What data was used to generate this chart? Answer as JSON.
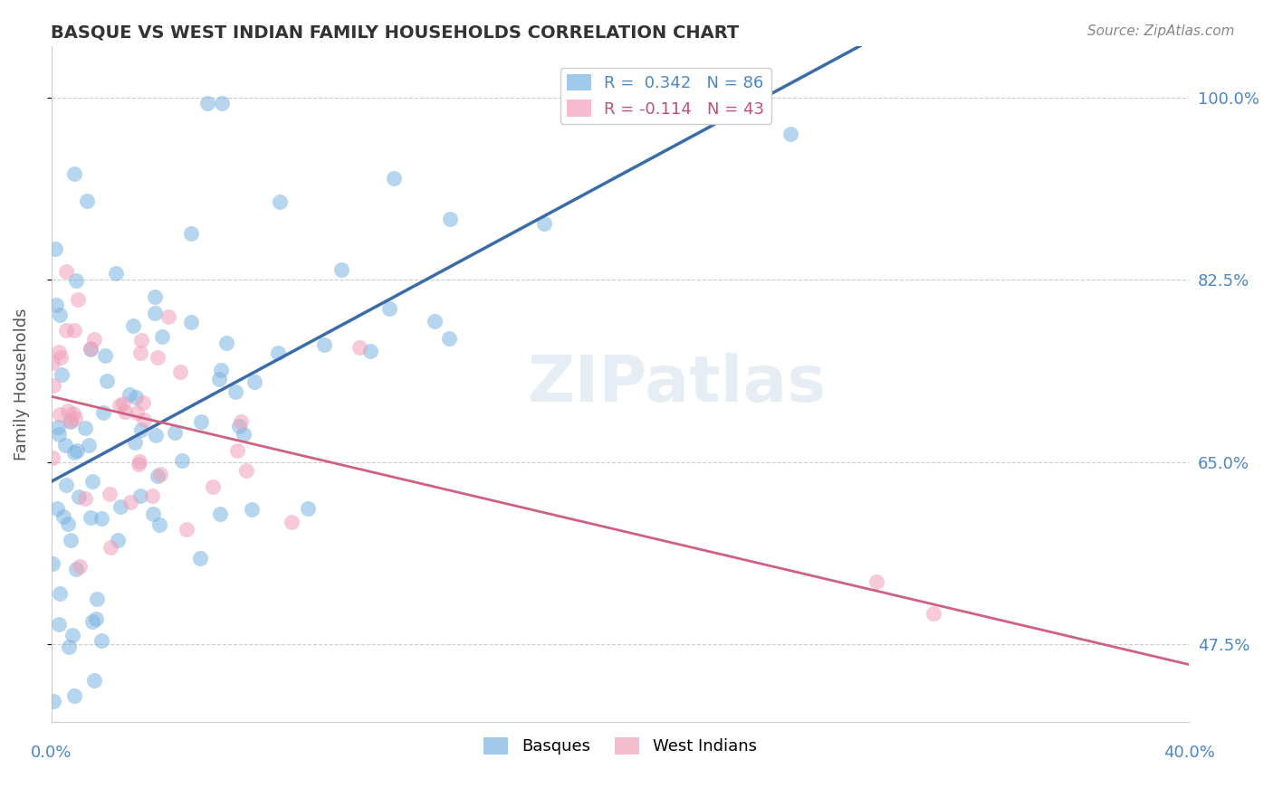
{
  "title": "BASQUE VS WEST INDIAN FAMILY HOUSEHOLDS CORRELATION CHART",
  "source": "Source: ZipAtlas.com",
  "ylabel": "Family Households",
  "yticks": [
    "47.5%",
    "65.0%",
    "82.5%",
    "100.0%"
  ],
  "ytick_values": [
    0.475,
    0.65,
    0.825,
    1.0
  ],
  "xlim": [
    0.0,
    0.4
  ],
  "ylim": [
    0.4,
    1.05
  ],
  "watermark": "ZIPatlas",
  "blue_color": "#7ab3e0",
  "pink_color": "#f0a0b8",
  "line_blue": "#3a6caa",
  "line_pink": "#d06080",
  "legend_r1": "R =  0.342   N = 86",
  "legend_r2": "R = -0.114   N = 43",
  "legend_color1": "#4a86c8",
  "legend_color2": "#c05070",
  "tick_color": "#4a86c8",
  "title_color": "#333333",
  "source_color": "#888888",
  "ylabel_color": "#555555"
}
